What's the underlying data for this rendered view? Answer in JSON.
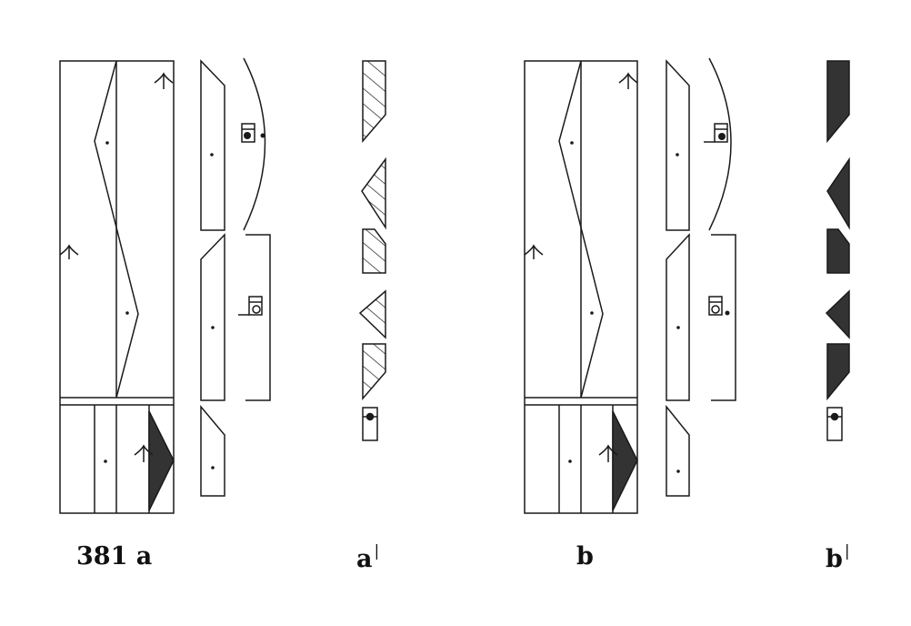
{
  "figure": {
    "captions": {
      "a": "381 a",
      "a_prime": "a",
      "a_prime_mark": "|",
      "b": "b",
      "b_prime": "b",
      "b_prime_mark": "|"
    },
    "colors": {
      "ink": "#1a1a1a",
      "fill_dark": "#333333",
      "paper": "#ffffff"
    }
  }
}
